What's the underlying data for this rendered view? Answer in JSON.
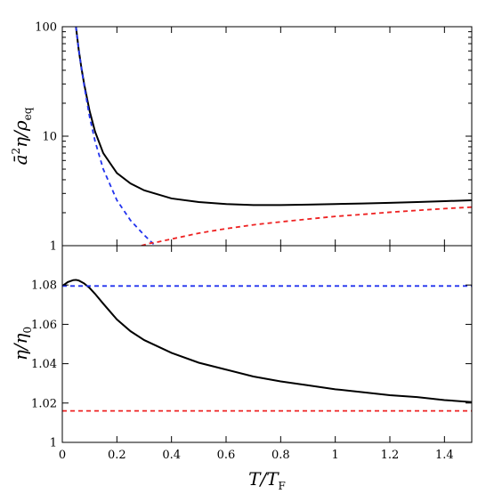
{
  "chart_data": [
    {
      "type": "line",
      "panel": "top",
      "ylabel": "ā²η/ρeq",
      "yscale": "log",
      "ylim": [
        1,
        100
      ],
      "xlim": [
        0,
        1.5
      ],
      "y_ticks": [
        {
          "value": 1,
          "label": "1"
        },
        {
          "value": 10,
          "label": "10"
        },
        {
          "value": 100,
          "label": "100"
        }
      ],
      "series": [
        {
          "style": "solid",
          "color": "#000000",
          "x": [
            0.05,
            0.06,
            0.07,
            0.08,
            0.1,
            0.12,
            0.15,
            0.2,
            0.25,
            0.3,
            0.4,
            0.5,
            0.6,
            0.7,
            0.8,
            0.9,
            1.0,
            1.1,
            1.2,
            1.3,
            1.4,
            1.5
          ],
          "y": [
            100,
            62,
            42,
            30,
            17,
            11,
            7.0,
            4.6,
            3.7,
            3.2,
            2.7,
            2.5,
            2.4,
            2.35,
            2.35,
            2.37,
            2.4,
            2.43,
            2.46,
            2.5,
            2.55,
            2.6
          ]
        },
        {
          "style": "dashed",
          "color": "#2233ee",
          "x": [
            0.05,
            0.06,
            0.07,
            0.08,
            0.1,
            0.12,
            0.15,
            0.2,
            0.25,
            0.3,
            0.34
          ],
          "y": [
            100,
            62,
            42,
            29,
            15,
            9.0,
            5.0,
            2.6,
            1.7,
            1.25,
            1.0
          ]
        },
        {
          "style": "dashed",
          "color": "#ee2222",
          "x": [
            0.29,
            0.32,
            0.35,
            0.4,
            0.5,
            0.6,
            0.7,
            0.8,
            0.9,
            1.0,
            1.1,
            1.2,
            1.3,
            1.4,
            1.5
          ],
          "y": [
            1.0,
            1.05,
            1.08,
            1.15,
            1.3,
            1.43,
            1.55,
            1.65,
            1.75,
            1.85,
            1.93,
            2.02,
            2.1,
            2.18,
            2.25
          ]
        }
      ]
    },
    {
      "type": "line",
      "panel": "bottom",
      "xlabel": "T/TF",
      "ylabel": "η/η0",
      "ylim": [
        1,
        1.1
      ],
      "xlim": [
        0,
        1.5
      ],
      "x_ticks": [
        {
          "value": 0,
          "label": "0"
        },
        {
          "value": 0.2,
          "label": "0.2"
        },
        {
          "value": 0.4,
          "label": "0.4"
        },
        {
          "value": 0.6,
          "label": "0.6"
        },
        {
          "value": 0.8,
          "label": "0.8"
        },
        {
          "value": 1.0,
          "label": "1"
        },
        {
          "value": 1.2,
          "label": "1.2"
        },
        {
          "value": 1.4,
          "label": "1.4"
        }
      ],
      "y_ticks": [
        {
          "value": 1.0,
          "label": "1"
        },
        {
          "value": 1.02,
          "label": "1.02"
        },
        {
          "value": 1.04,
          "label": "1.04"
        },
        {
          "value": 1.06,
          "label": "1.06"
        },
        {
          "value": 1.08,
          "label": "1.08"
        }
      ],
      "series": [
        {
          "style": "solid",
          "color": "#000000",
          "x": [
            0,
            0.02,
            0.04,
            0.05,
            0.06,
            0.08,
            0.1,
            0.12,
            0.15,
            0.2,
            0.25,
            0.3,
            0.4,
            0.5,
            0.6,
            0.7,
            0.8,
            0.9,
            1.0,
            1.1,
            1.2,
            1.3,
            1.4,
            1.5
          ],
          "y": [
            1.0795,
            1.0815,
            1.0825,
            1.0826,
            1.0823,
            1.0808,
            1.0785,
            1.0755,
            1.0705,
            1.0625,
            1.0565,
            1.052,
            1.0455,
            1.0405,
            1.037,
            1.0335,
            1.031,
            1.029,
            1.027,
            1.0255,
            1.024,
            1.023,
            1.0215,
            1.0205
          ]
        },
        {
          "style": "dashed",
          "color": "#2233ee",
          "x": [
            0,
            1.5
          ],
          "y": [
            1.0795,
            1.0795
          ]
        },
        {
          "style": "dashed",
          "color": "#ee2222",
          "x": [
            0,
            1.5
          ],
          "y": [
            1.016,
            1.016
          ]
        }
      ]
    }
  ]
}
